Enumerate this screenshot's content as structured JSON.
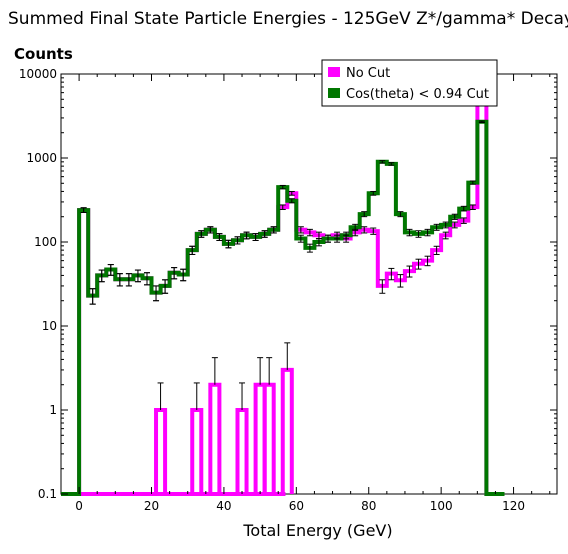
{
  "chart_data": {
    "type": "histogram",
    "title": "Summed Final State Particle Energies - 125GeV Z*/gamma* Decays",
    "ylabel": "Counts",
    "xlabel": "Total Energy (GeV)",
    "x_range": [
      -5,
      132
    ],
    "y_range": [
      0.1,
      10000
    ],
    "y_scale": "log",
    "x_ticks": [
      0,
      20,
      40,
      60,
      80,
      100,
      120
    ],
    "y_ticks": [
      0.1,
      1,
      10,
      100,
      1000,
      10000
    ],
    "y_tick_labels": [
      "0.1",
      "1",
      "10",
      "100",
      "1000",
      "10000"
    ],
    "bin_width": 2.5,
    "bin_start": -5,
    "legend": {
      "position": "top-right"
    },
    "series": [
      {
        "name": "No Cut",
        "color": "#ff00ff",
        "values": [
          0.1,
          0.1,
          240,
          23,
          40,
          47,
          36,
          36,
          40,
          37,
          25,
          30,
          43,
          41,
          80,
          125,
          140,
          115,
          95,
          105,
          120,
          115,
          125,
          140,
          260,
          380,
          140,
          130,
          120,
          110,
          120,
          110,
          130,
          140,
          135,
          30,
          42,
          35,
          45,
          55,
          60,
          80,
          120,
          160,
          180,
          260,
          7500,
          0.1,
          0.1
        ]
      },
      {
        "name": "Cos(theta) < 0.94 Cut",
        "color": "#007700",
        "values": [
          0.1,
          0.1,
          240,
          23,
          40,
          47,
          36,
          36,
          40,
          37,
          25,
          30,
          43,
          41,
          80,
          125,
          140,
          115,
          95,
          105,
          120,
          115,
          125,
          140,
          450,
          310,
          110,
          85,
          100,
          110,
          110,
          120,
          150,
          215,
          380,
          900,
          850,
          215,
          130,
          125,
          130,
          150,
          160,
          200,
          250,
          510,
          2700,
          0.1,
          0.1
        ]
      }
    ],
    "no_cut_low_bins": [
      {
        "x": 22.5,
        "value": 1
      },
      {
        "x": 32.5,
        "value": 1
      },
      {
        "x": 37.5,
        "value": 2
      },
      {
        "x": 45,
        "value": 1
      },
      {
        "x": 50,
        "value": 2
      },
      {
        "x": 52.5,
        "value": 2
      },
      {
        "x": 57.5,
        "value": 3
      }
    ]
  }
}
